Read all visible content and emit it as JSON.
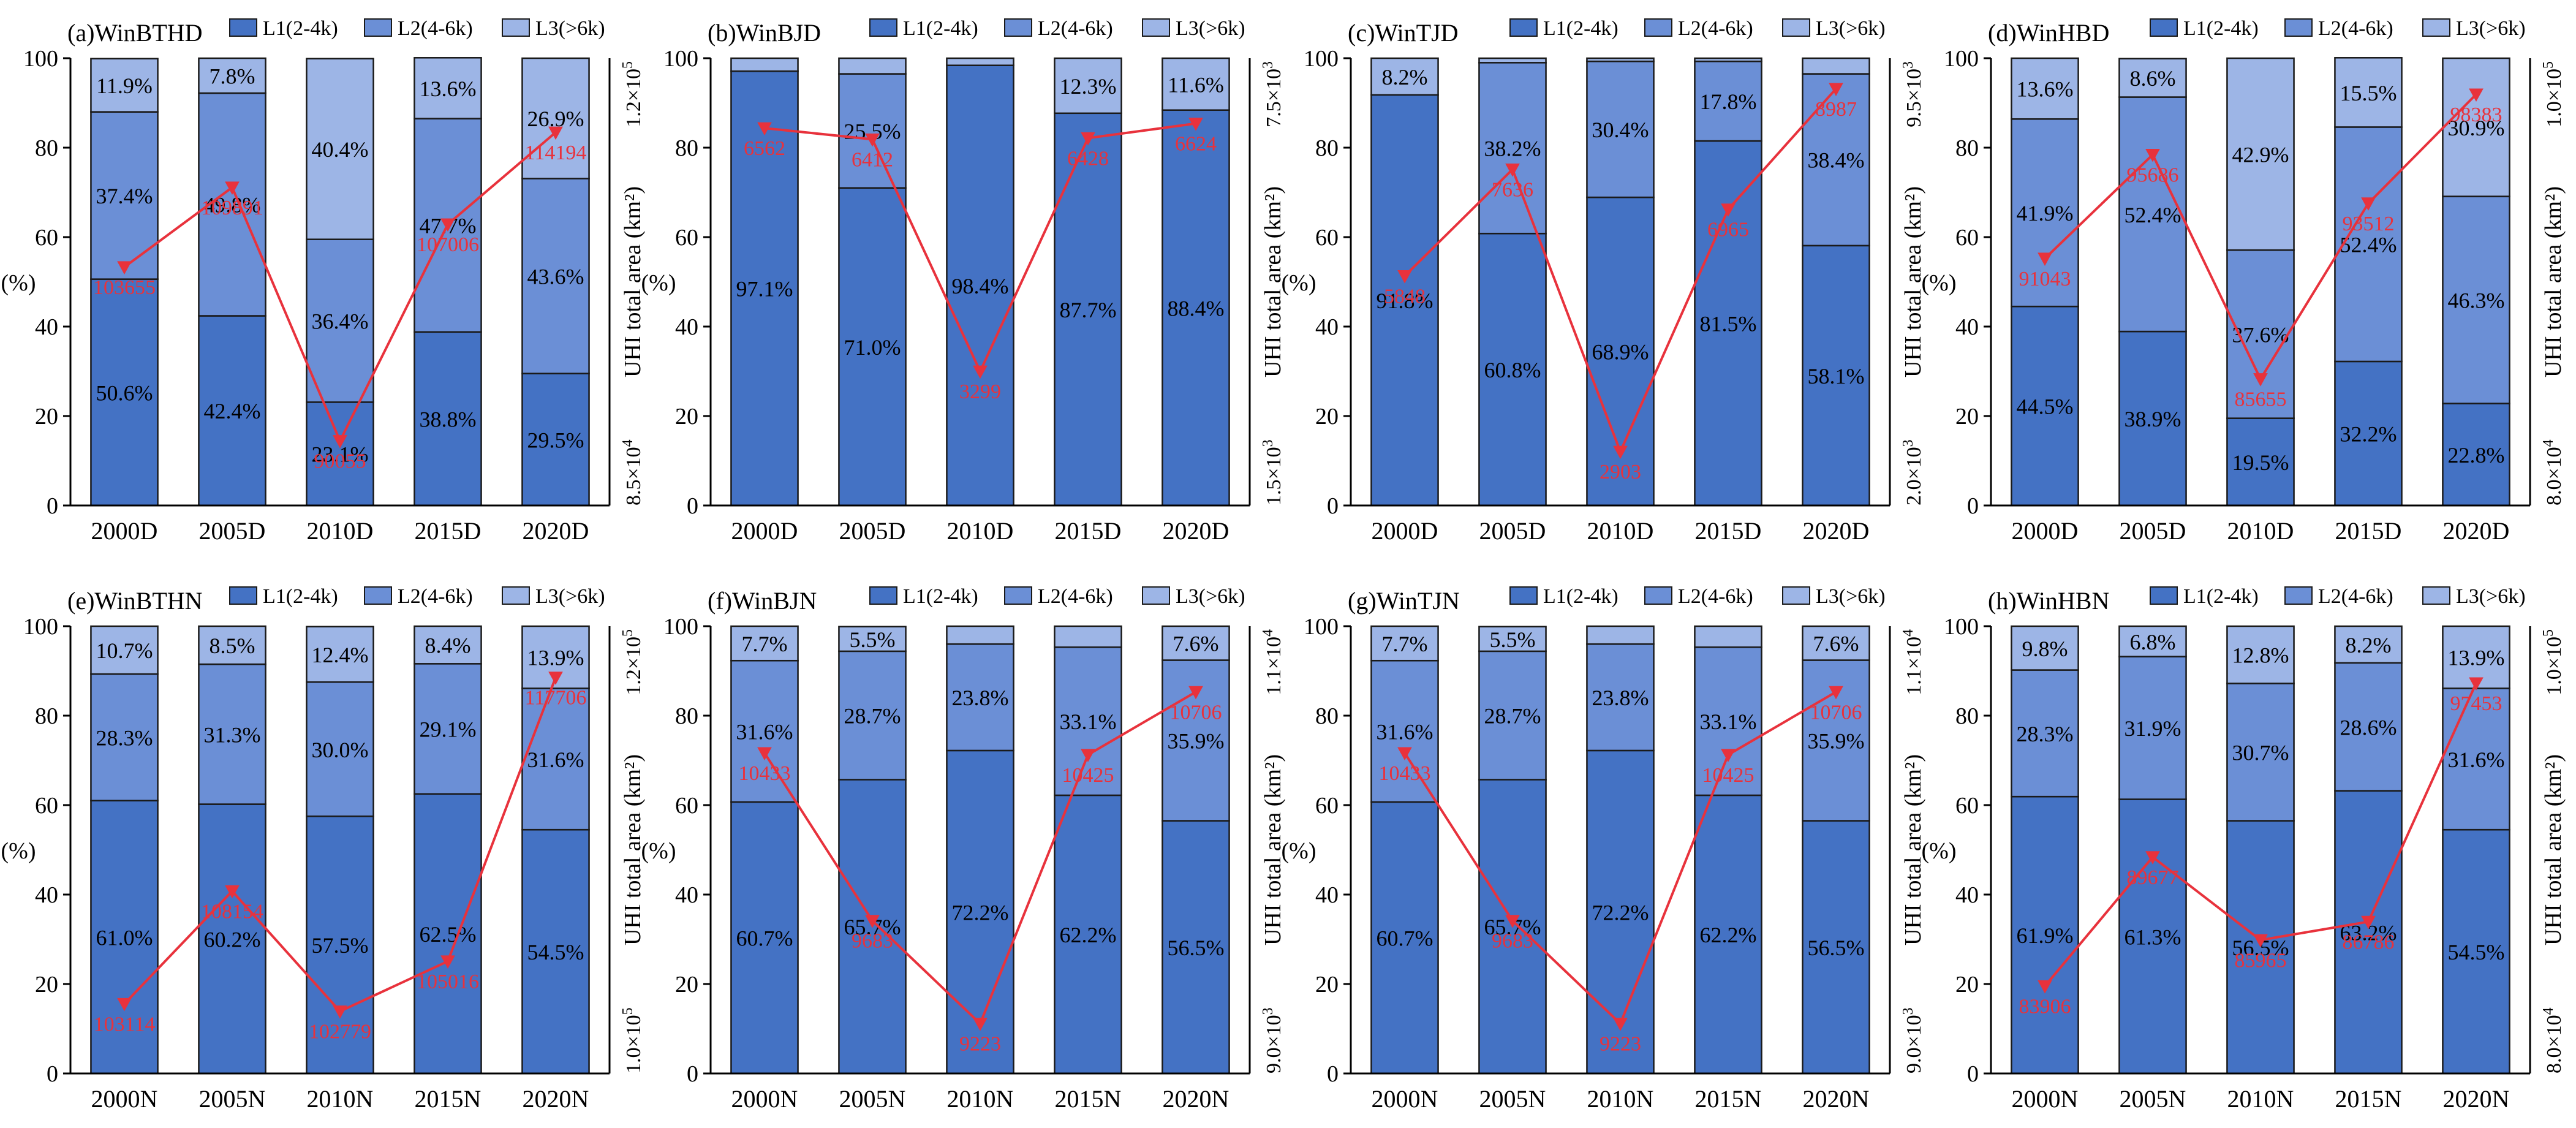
{
  "colors": {
    "L1": "#4472c4",
    "L2": "#6b8fd6",
    "L3": "#9db5e6",
    "line": "#e8323c",
    "text": "#000000"
  },
  "legend": [
    "L1(2-4k)",
    "L2(4-6k)",
    "L3(>6k)"
  ],
  "chart_data": [
    {
      "type": "bar",
      "title": "(a)WinBTHD",
      "categories": [
        "2000D",
        "2005D",
        "2010D",
        "2015D",
        "2020D"
      ],
      "ylabel": "(%)",
      "ylim": [
        0,
        100
      ],
      "series": [
        {
          "name": "L1(2-4k)",
          "values": [
            50.6,
            42.4,
            23.1,
            38.8,
            29.5
          ]
        },
        {
          "name": "L2(4-6k)",
          "values": [
            37.4,
            49.8,
            36.4,
            47.7,
            43.6
          ]
        },
        {
          "name": "L3(>6k)",
          "values": [
            11.9,
            7.8,
            40.4,
            13.6,
            26.9
          ]
        }
      ],
      "labels": [
        [
          "50.6%",
          "42.4%",
          "23.1%",
          "38.8%",
          "29.5%"
        ],
        [
          "37.4%",
          "49.8%",
          "36.4%",
          "47.7%",
          "43.6%"
        ],
        [
          "11.9%",
          "7.8%",
          "40.4%",
          "13.6%",
          "26.9%"
        ]
      ],
      "y2label": "UHI total area (km²)",
      "y2_top": {
        "mant": "1.2",
        "exp": "5"
      },
      "y2_bottom": {
        "mant": "8.5",
        "exp": "4"
      },
      "y2lim": [
        85000,
        120000
      ],
      "uhi": [
        103655,
        109891,
        90055,
        107006,
        114194
      ],
      "uhi_labels": [
        "103655",
        "109891",
        "90055",
        "107006",
        "114194"
      ]
    },
    {
      "type": "bar",
      "title": "(b)WinBJD",
      "categories": [
        "2000D",
        "2005D",
        "2010D",
        "2015D",
        "2020D"
      ],
      "ylabel": "(%)",
      "ylim": [
        0,
        100
      ],
      "series": [
        {
          "name": "L1(2-4k)",
          "values": [
            97.1,
            71.0,
            98.4,
            87.7,
            88.4
          ]
        },
        {
          "name": "L2(4-6k)",
          "values": [
            0.0,
            25.5,
            0.0,
            0.0,
            0.0
          ]
        },
        {
          "name": "L3(>6k)",
          "values": [
            2.9,
            3.5,
            1.6,
            12.3,
            11.6
          ]
        }
      ],
      "labels": [
        [
          "97.1%",
          "71.0%",
          "98.4%",
          "87.7%",
          "88.4%"
        ],
        [
          "",
          "25.5%",
          "",
          "",
          ""
        ],
        [
          "",
          "",
          "",
          "12.3%",
          "11.6%"
        ]
      ],
      "y2label": "UHI total area (km²)",
      "y2_top": {
        "mant": "7.5",
        "exp": "3"
      },
      "y2_bottom": {
        "mant": "1.5",
        "exp": "3"
      },
      "y2lim": [
        1500,
        7500
      ],
      "uhi": [
        6562,
        6412,
        3299,
        6428,
        6624
      ],
      "uhi_labels": [
        "6562",
        "6412",
        "3299",
        "6428",
        "6624"
      ]
    },
    {
      "type": "bar",
      "title": "(c)WinTJD",
      "categories": [
        "2000D",
        "2005D",
        "2010D",
        "2015D",
        "2020D"
      ],
      "ylabel": "(%)",
      "ylim": [
        0,
        100
      ],
      "series": [
        {
          "name": "L1(2-4k)",
          "values": [
            91.8,
            60.8,
            68.9,
            81.5,
            58.1
          ]
        },
        {
          "name": "L2(4-6k)",
          "values": [
            0.0,
            38.2,
            30.4,
            17.8,
            38.4
          ]
        },
        {
          "name": "L3(>6k)",
          "values": [
            8.2,
            1.0,
            0.7,
            0.7,
            3.5
          ]
        }
      ],
      "labels": [
        [
          "91.8%",
          "60.8%",
          "68.9%",
          "81.5%",
          "58.1%"
        ],
        [
          "",
          "38.2%",
          "30.4%",
          "17.8%",
          "38.4%"
        ],
        [
          "8.2%",
          "",
          "",
          "",
          ""
        ]
      ],
      "y2label": "UHI total area (km²)",
      "y2_top": {
        "mant": "9.5",
        "exp": "3"
      },
      "y2_bottom": {
        "mant": "2.0",
        "exp": "3"
      },
      "y2lim": [
        2000,
        9500
      ],
      "uhi": [
        5848,
        7636,
        2903,
        6965,
        8987
      ],
      "uhi_labels": [
        "5848",
        "7636",
        "2903",
        "6965",
        "8987"
      ]
    },
    {
      "type": "bar",
      "title": "(d)WinHBD",
      "categories": [
        "2000D",
        "2005D",
        "2010D",
        "2015D",
        "2020D"
      ],
      "ylabel": "(%)",
      "ylim": [
        0,
        100
      ],
      "series": [
        {
          "name": "L1(2-4k)",
          "values": [
            44.5,
            38.9,
            19.5,
            32.2,
            22.8
          ]
        },
        {
          "name": "L2(4-6k)",
          "values": [
            41.9,
            52.4,
            37.6,
            52.4,
            46.3
          ]
        },
        {
          "name": "L3(>6k)",
          "values": [
            13.6,
            8.6,
            42.9,
            15.5,
            30.9
          ]
        }
      ],
      "labels": [
        [
          "44.5%",
          "38.9%",
          "19.5%",
          "32.2%",
          "22.8%"
        ],
        [
          "41.9%",
          "52.4%",
          "37.6%",
          "52.4%",
          "46.3%"
        ],
        [
          "13.6%",
          "8.6%",
          "42.9%",
          "15.5%",
          "30.9%"
        ]
      ],
      "y2label": "UHI total area (km²)",
      "y2_top": {
        "mant": "1.0",
        "exp": "5"
      },
      "y2_bottom": {
        "mant": "8.0",
        "exp": "4"
      },
      "y2lim": [
        80000,
        100000
      ],
      "uhi": [
        91043,
        95686,
        85655,
        93512,
        98383
      ],
      "uhi_labels": [
        "91043",
        "95686",
        "85655",
        "93512",
        "98383"
      ]
    },
    {
      "type": "bar",
      "title": "(e)WinBTHN",
      "categories": [
        "2000N",
        "2005N",
        "2010N",
        "2015N",
        "2020N"
      ],
      "ylabel": "(%)",
      "ylim": [
        0,
        100
      ],
      "series": [
        {
          "name": "L1(2-4k)",
          "values": [
            61.0,
            60.2,
            57.5,
            62.5,
            54.5
          ]
        },
        {
          "name": "L2(4-6k)",
          "values": [
            28.3,
            31.3,
            30.0,
            29.1,
            31.6
          ]
        },
        {
          "name": "L3(>6k)",
          "values": [
            10.7,
            8.5,
            12.4,
            8.4,
            13.9
          ]
        }
      ],
      "labels": [
        [
          "61.0%",
          "60.2%",
          "57.5%",
          "62.5%",
          "54.5%"
        ],
        [
          "28.3%",
          "31.3%",
          "30.0%",
          "29.1%",
          "31.6%"
        ],
        [
          "10.7%",
          "8.5%",
          "12.4%",
          "8.4%",
          "13.9%"
        ]
      ],
      "y2label": "UHI total area (km²)",
      "y2_top": {
        "mant": "1.2",
        "exp": "5"
      },
      "y2_bottom": {
        "mant": "1.0",
        "exp": "5"
      },
      "y2lim": [
        100000,
        120000
      ],
      "uhi": [
        103114,
        108154,
        102779,
        105016,
        117706
      ],
      "uhi_labels": [
        "103114",
        "108154",
        "102779",
        "105016",
        "117706"
      ]
    },
    {
      "type": "bar",
      "title": "(f)WinBJN",
      "categories": [
        "2000N",
        "2005N",
        "2010N",
        "2015N",
        "2020N"
      ],
      "ylabel": "(%)",
      "ylim": [
        0,
        100
      ],
      "series": [
        {
          "name": "L1(2-4k)",
          "values": [
            60.7,
            65.7,
            72.2,
            62.2,
            56.5
          ]
        },
        {
          "name": "L2(4-6k)",
          "values": [
            31.6,
            28.7,
            23.8,
            33.1,
            35.9
          ]
        },
        {
          "name": "L3(>6k)",
          "values": [
            7.7,
            5.5,
            4.0,
            4.7,
            7.6
          ]
        }
      ],
      "labels": [
        [
          "60.7%",
          "65.7%",
          "72.2%",
          "62.2%",
          "56.5%"
        ],
        [
          "31.6%",
          "28.7%",
          "23.8%",
          "33.1%",
          "35.9%"
        ],
        [
          "7.7%",
          "5.5%",
          "",
          "",
          "7.6%"
        ]
      ],
      "y2label": "UHI total area (km²)",
      "y2_top": {
        "mant": "1.1",
        "exp": "4"
      },
      "y2_bottom": {
        "mant": "9.0",
        "exp": "3"
      },
      "y2lim": [
        9000,
        11000
      ],
      "uhi": [
        10433,
        9683,
        9223,
        10425,
        10706
      ],
      "uhi_labels": [
        "10433",
        "9683",
        "9223",
        "10425",
        "10706"
      ]
    },
    {
      "type": "bar",
      "title": "(g)WinTJN",
      "categories": [
        "2000N",
        "2005N",
        "2010N",
        "2015N",
        "2020N"
      ],
      "ylabel": "(%)",
      "ylim": [
        0,
        100
      ],
      "series": [
        {
          "name": "L1(2-4k)",
          "values": [
            60.7,
            65.7,
            72.2,
            62.2,
            56.5
          ]
        },
        {
          "name": "L2(4-6k)",
          "values": [
            31.6,
            28.7,
            23.8,
            33.1,
            35.9
          ]
        },
        {
          "name": "L3(>6k)",
          "values": [
            7.7,
            5.5,
            4.0,
            4.7,
            7.6
          ]
        }
      ],
      "labels": [
        [
          "60.7%",
          "65.7%",
          "72.2%",
          "62.2%",
          "56.5%"
        ],
        [
          "31.6%",
          "28.7%",
          "23.8%",
          "33.1%",
          "35.9%"
        ],
        [
          "7.7%",
          "5.5%",
          "",
          "",
          "7.6%"
        ]
      ],
      "y2label": "UHI total area (km²)",
      "y2_top": {
        "mant": "1.1",
        "exp": "4"
      },
      "y2_bottom": {
        "mant": "9.0",
        "exp": "3"
      },
      "y2lim": [
        9000,
        11000
      ],
      "uhi": [
        10433,
        9683,
        9223,
        10425,
        10706
      ],
      "uhi_labels": [
        "10433",
        "9683",
        "9223",
        "10425",
        "10706"
      ]
    },
    {
      "type": "bar",
      "title": "(h)WinHBN",
      "categories": [
        "2000N",
        "2005N",
        "2010N",
        "2015N",
        "2020N"
      ],
      "ylabel": "(%)",
      "ylim": [
        0,
        100
      ],
      "series": [
        {
          "name": "L1(2-4k)",
          "values": [
            61.9,
            61.3,
            56.5,
            63.2,
            54.5
          ]
        },
        {
          "name": "L2(4-6k)",
          "values": [
            28.3,
            31.9,
            30.7,
            28.6,
            31.6
          ]
        },
        {
          "name": "L3(>6k)",
          "values": [
            9.8,
            6.8,
            12.8,
            8.2,
            13.9
          ]
        }
      ],
      "labels": [
        [
          "61.9%",
          "61.3%",
          "56.5%",
          "63.2%",
          "54.5%"
        ],
        [
          "28.3%",
          "31.9%",
          "30.7%",
          "28.6%",
          "31.6%"
        ],
        [
          "9.8%",
          "6.8%",
          "12.8%",
          "8.2%",
          "13.9%"
        ]
      ],
      "y2label": "UHI total area (km²)",
      "y2_top": {
        "mant": "1.0",
        "exp": "5"
      },
      "y2_bottom": {
        "mant": "8.0",
        "exp": "4"
      },
      "y2lim": [
        80000,
        100000
      ],
      "uhi": [
        83906,
        89677,
        85965,
        86786,
        97453
      ],
      "uhi_labels": [
        "83906",
        "89677",
        "85965",
        "86786",
        "97453"
      ]
    }
  ]
}
